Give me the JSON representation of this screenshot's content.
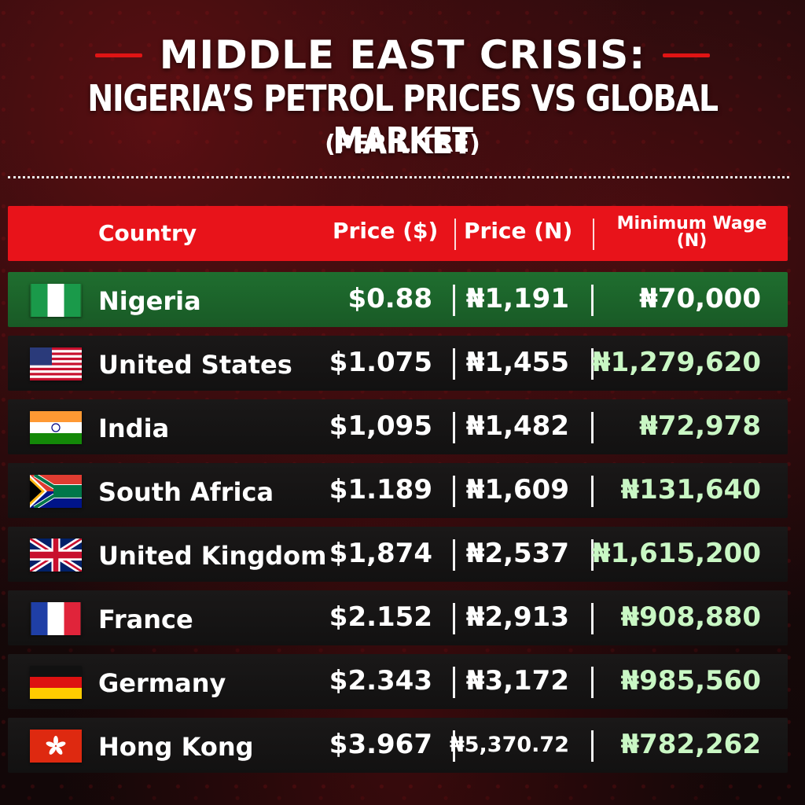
{
  "header": {
    "title_line1": "MIDDLE EAST CRISIS:",
    "title_line2": "NIGERIA’S PETROL PRICES VS GLOBAL MARKET",
    "subtitle": "(PER LITRE)"
  },
  "table": {
    "columns": {
      "country": "Country",
      "price_usd": "Price ($)",
      "price_ngn": "Price (N)",
      "min_wage": "Minimum Wage (N)"
    },
    "rows": [
      {
        "country": "Nigeria",
        "price_usd": "$0.88",
        "price_ngn": "₦1,191",
        "min_wage": "₦70,000",
        "flag": "nigeria-flag-icon"
      },
      {
        "country": "United States",
        "price_usd": "$1.075",
        "price_ngn": "₦1,455",
        "min_wage": "₦1,279,620",
        "flag": "usa-flag-icon"
      },
      {
        "country": "India",
        "price_usd": "$1,095",
        "price_ngn": "₦1,482",
        "min_wage": "₦72,978",
        "flag": "india-flag-icon"
      },
      {
        "country": "South Africa",
        "price_usd": "$1.189",
        "price_ngn": "₦1,609",
        "min_wage": "₦131,640",
        "flag": "south-africa-flag-icon"
      },
      {
        "country": "United Kingdom",
        "price_usd": "$1,874",
        "price_ngn": "₦2,537",
        "min_wage": "₦1,615,200",
        "flag": "uk-flag-icon"
      },
      {
        "country": "France",
        "price_usd": "$2.152",
        "price_ngn": "₦2,913",
        "min_wage": "₦908,880",
        "flag": "france-flag-icon"
      },
      {
        "country": "Germany",
        "price_usd": "$2.343",
        "price_ngn": "₦3,172",
        "min_wage": "₦985,560",
        "flag": "germany-flag-icon"
      },
      {
        "country": "Hong Kong",
        "price_usd": "$3.967",
        "price_ngn": "₦5,370.72",
        "min_wage": "₦782,262",
        "flag": "hong-kong-flag-icon"
      }
    ]
  },
  "colors": {
    "header_red": "#e8131a",
    "highlight_green": "#1f6e2f",
    "wage_green": "#c9f7c4"
  }
}
